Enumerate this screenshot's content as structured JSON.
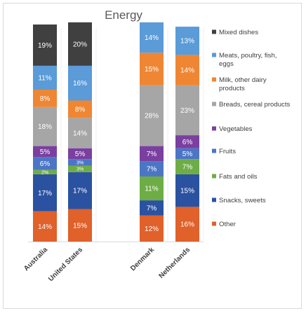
{
  "chart_data": {
    "type": "bar",
    "stacked": true,
    "title": "Energy",
    "xlabel": "",
    "ylabel": "",
    "ylim": [
      0,
      100
    ],
    "grid": false,
    "legend_position": "right",
    "categories": [
      "Australia",
      "United States",
      "Denmark",
      "Netherlands"
    ],
    "series": [
      {
        "name": "Other",
        "color": "#E0612A",
        "values": [
          14,
          15,
          12,
          16
        ]
      },
      {
        "name": "Snacks,  sweets",
        "color": "#2A52A0",
        "values": [
          17,
          17,
          7,
          15
        ]
      },
      {
        "name": "Fats and oils",
        "color": "#6EAD45",
        "values": [
          2,
          3,
          11,
          7
        ]
      },
      {
        "name": "Fruits",
        "color": "#4B76C6",
        "values": [
          6,
          3,
          7,
          5
        ]
      },
      {
        "name": "Vegetables",
        "color": "#7B3FA0",
        "values": [
          5,
          5,
          7,
          6
        ]
      },
      {
        "name": "Breads, cereal products",
        "color": "#A6A6A6",
        "values": [
          18,
          14,
          28,
          23
        ]
      },
      {
        "name": "Milk, other dairy products",
        "color": "#EF8633",
        "values": [
          8,
          8,
          15,
          14
        ]
      },
      {
        "name": "Meats, poultry, fish, eggs",
        "color": "#5A9BD8",
        "values": [
          11,
          16,
          14,
          13
        ]
      },
      {
        "name": "Mixed dishes",
        "color": "#404040",
        "values": [
          19,
          20,
          0,
          0
        ]
      }
    ],
    "data_labels": [
      [
        "14%",
        "15%",
        "12%",
        "16%"
      ],
      [
        "17%",
        "17%",
        "7%",
        "15%"
      ],
      [
        "2%",
        "3%",
        "11%",
        "7%"
      ],
      [
        "6%",
        "3%",
        "7%",
        "5%"
      ],
      [
        "5%",
        "5%",
        "7%",
        "6%"
      ],
      [
        "18%",
        "14%",
        "28%",
        "23%"
      ],
      [
        "8%",
        "8%",
        "15%",
        "14%"
      ],
      [
        "11%",
        "16%",
        "14%",
        "13%"
      ],
      [
        "19%",
        "20%",
        "",
        ""
      ]
    ]
  },
  "legend": [
    {
      "lines": [
        "Mixed dishes"
      ],
      "color": "#404040"
    },
    {
      "lines": [
        "Meats, poultry, fish,",
        "eggs"
      ],
      "color": "#5A9BD8"
    },
    {
      "lines": [
        "Milk, other dairy",
        "products"
      ],
      "color": "#EF8633"
    },
    {
      "lines": [
        "Breads, cereal products"
      ],
      "color": "#A6A6A6"
    },
    {
      "lines": [
        "Vegetables"
      ],
      "color": "#7B3FA0"
    },
    {
      "lines": [
        "Fruits"
      ],
      "color": "#4B76C6"
    },
    {
      "lines": [
        "Fats and oils"
      ],
      "color": "#6EAD45"
    },
    {
      "lines": [
        "Snacks,  sweets"
      ],
      "color": "#2A52A0"
    },
    {
      "lines": [
        "Other"
      ],
      "color": "#E0612A"
    }
  ]
}
